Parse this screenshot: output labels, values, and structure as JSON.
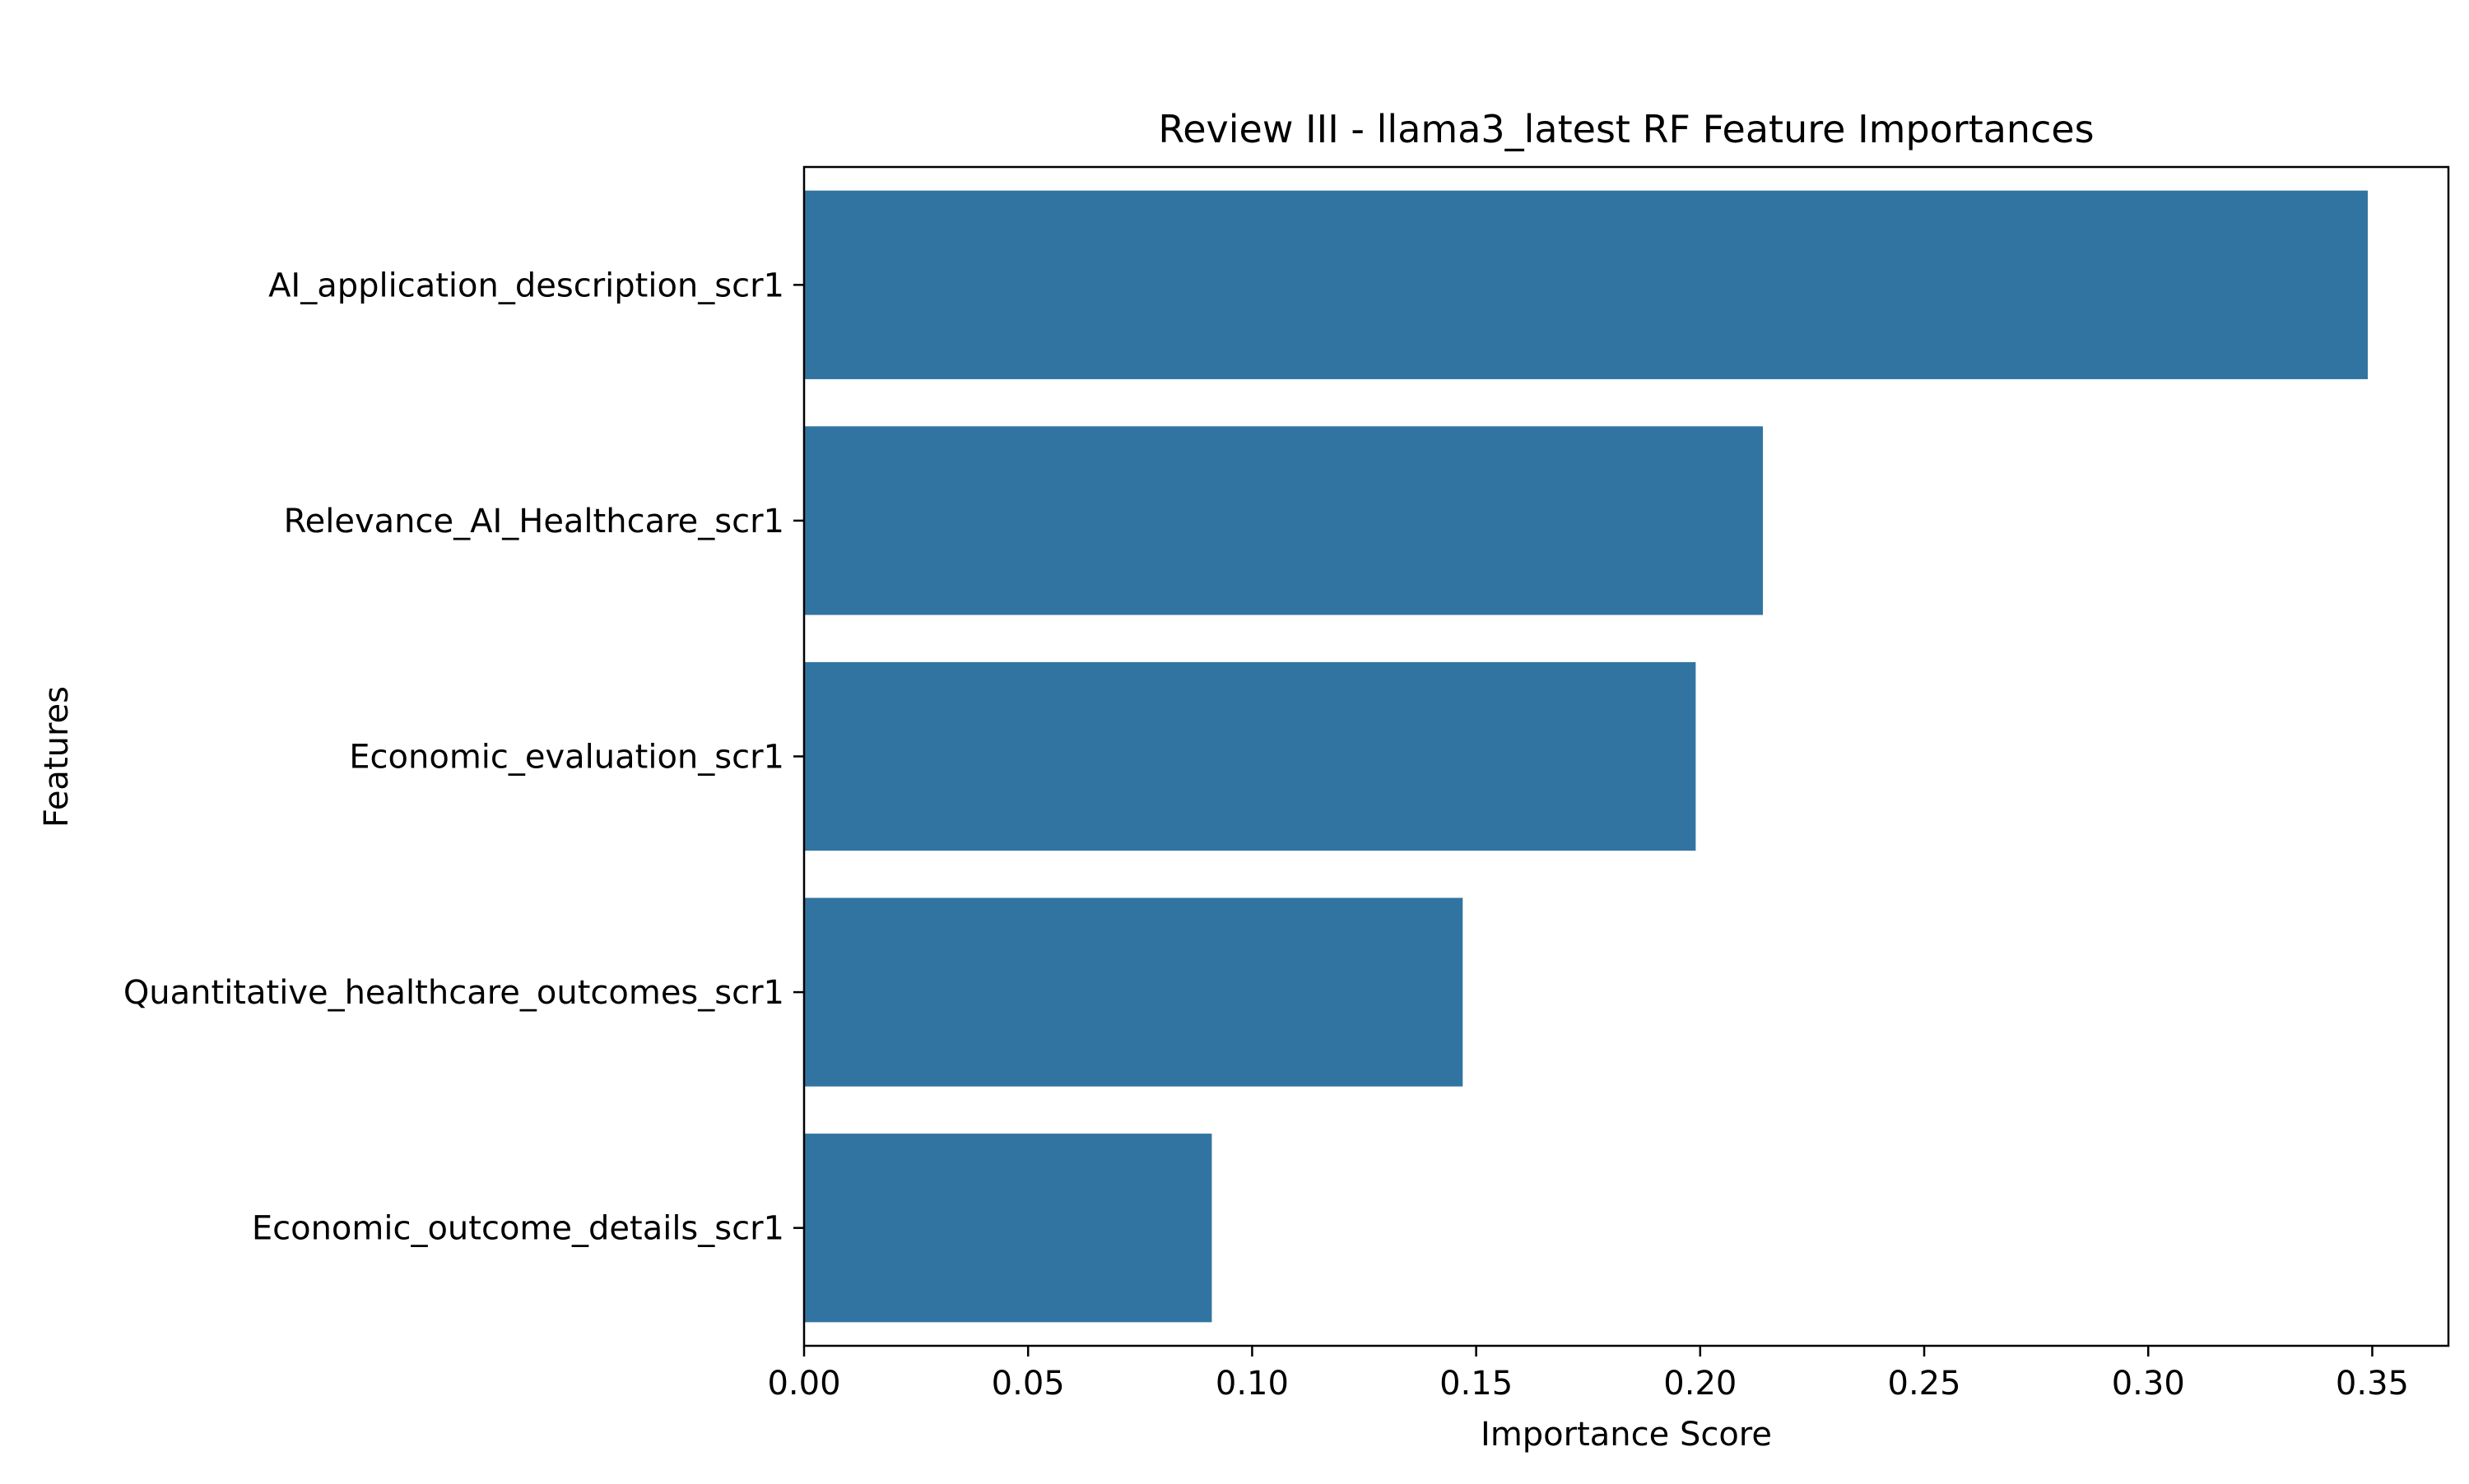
{
  "chart_data": {
    "type": "bar",
    "orientation": "horizontal",
    "title": "Review III - llama3_latest RF Feature Importances",
    "xlabel": "Importance Score",
    "ylabel": "Features",
    "categories": [
      "AI_application_description_scr1",
      "Relevance_AI_Healthcare_scr1",
      "Economic_evaluation_scr1",
      "Quantitative_healthcare_outcomes_scr1",
      "Economic_outcome_details_scr1"
    ],
    "values": [
      0.349,
      0.214,
      0.199,
      0.147,
      0.091
    ],
    "xlim": [
      0,
      0.367
    ],
    "xticks": [
      "0.00",
      "0.05",
      "0.10",
      "0.15",
      "0.20",
      "0.25",
      "0.30",
      "0.35"
    ],
    "bar_color": "#3274a1",
    "grid": false,
    "legend": false
  }
}
